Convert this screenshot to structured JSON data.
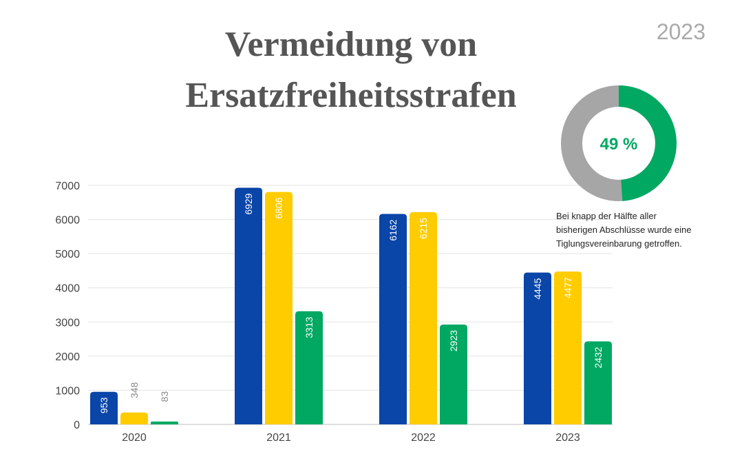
{
  "header": {
    "title_line1": "Vermeidung von",
    "title_line2": "Ersatzfreiheitsstrafen",
    "year": "2023"
  },
  "donut": {
    "percent": 49,
    "label": "49 %",
    "description": "Bei knapp der Hälfte aller bisherigen Abschlüsse wurde eine Tiglungsvereinbarung getroffen.",
    "color_active": "#00a862",
    "color_rest": "#a6a6a6"
  },
  "chart_data": {
    "type": "bar",
    "categories": [
      "2020",
      "2021",
      "2022",
      "2023"
    ],
    "series": [
      {
        "values": [
          953,
          6929,
          6162,
          4445
        ],
        "color": "#0a45a8"
      },
      {
        "values": [
          348,
          6806,
          6215,
          4477
        ],
        "color": "#ffcc00"
      },
      {
        "values": [
          83,
          3313,
          2923,
          2432
        ],
        "color": "#00a862"
      }
    ],
    "ylim": [
      0,
      7000
    ],
    "yticks": [
      0,
      1000,
      2000,
      3000,
      4000,
      5000,
      6000,
      7000
    ],
    "grid": true,
    "xlabel": "",
    "ylabel": ""
  }
}
